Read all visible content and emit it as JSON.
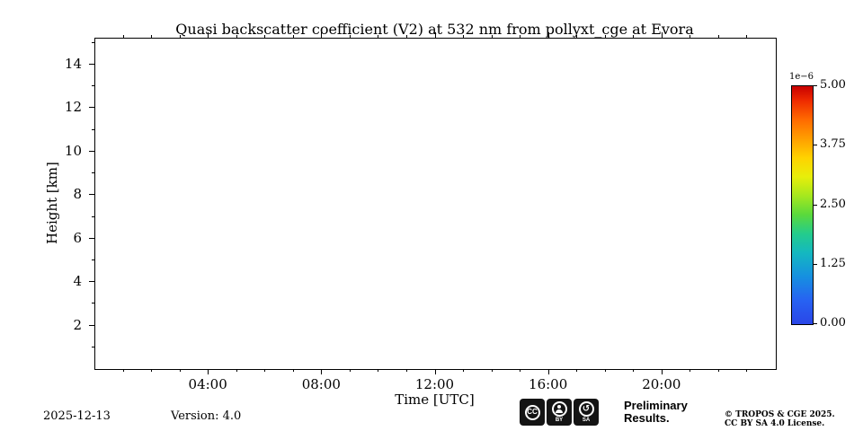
{
  "title": "Quasi backscatter coefficient (V2) at 532 nm from pollyxt_cge at Evora",
  "chart_data": {
    "type": "heatmap",
    "title": "Quasi backscatter coefficient (V2) at 532 nm from pollyxt_cge at Evora",
    "xlabel": "Time [UTC]",
    "ylabel": "Height [km]",
    "x_ticks": [
      "04:00",
      "08:00",
      "12:00",
      "16:00",
      "20:00"
    ],
    "x_tick_hours": [
      4,
      8,
      12,
      16,
      20
    ],
    "x_range_hours": [
      0,
      24
    ],
    "x_minor_hours_step": 1,
    "y_ticks": [
      2,
      4,
      6,
      8,
      10,
      12,
      14
    ],
    "ylim": [
      0,
      15.2
    ],
    "y_minor_km_step": 1,
    "grid": false,
    "values": [],
    "colorbar": {
      "scale_label": "1e−6",
      "ticks": [
        "5.00",
        "3.75",
        "2.50",
        "1.25",
        "0.00"
      ],
      "tick_values": [
        5.0,
        3.75,
        2.5,
        1.25,
        0.0
      ],
      "range_scaled": [
        0,
        5
      ],
      "colormap": "jet",
      "colormap_stops": [
        {
          "at": 0,
          "color": "#c80000"
        },
        {
          "at": 6,
          "color": "#ee2a00"
        },
        {
          "at": 14,
          "color": "#ff6a00"
        },
        {
          "at": 22,
          "color": "#ff9e00"
        },
        {
          "at": 30,
          "color": "#ffd200"
        },
        {
          "at": 38,
          "color": "#e8ee0a"
        },
        {
          "at": 46,
          "color": "#a6e81e"
        },
        {
          "at": 54,
          "color": "#5ad93c"
        },
        {
          "at": 62,
          "color": "#24cc8c"
        },
        {
          "at": 70,
          "color": "#14b8c0"
        },
        {
          "at": 80,
          "color": "#1690e0"
        },
        {
          "at": 90,
          "color": "#2762f2"
        },
        {
          "at": 100,
          "color": "#2a46e8"
        }
      ]
    }
  },
  "footer": {
    "date": "2025-12-13",
    "version": "Version: 4.0",
    "preliminary_line1": "Preliminary",
    "preliminary_line2": "Results.",
    "copyright_line1": "© TROPOS & CGE 2025.",
    "copyright_line2": "CC BY SA 4.0 License.",
    "badge": {
      "cc_label": "CC",
      "by_label": "BY",
      "sa_label": "SA"
    }
  },
  "colors": {
    "preliminary_red": "#ee3b2c",
    "axis_black": "#000000",
    "background": "#ffffff"
  }
}
